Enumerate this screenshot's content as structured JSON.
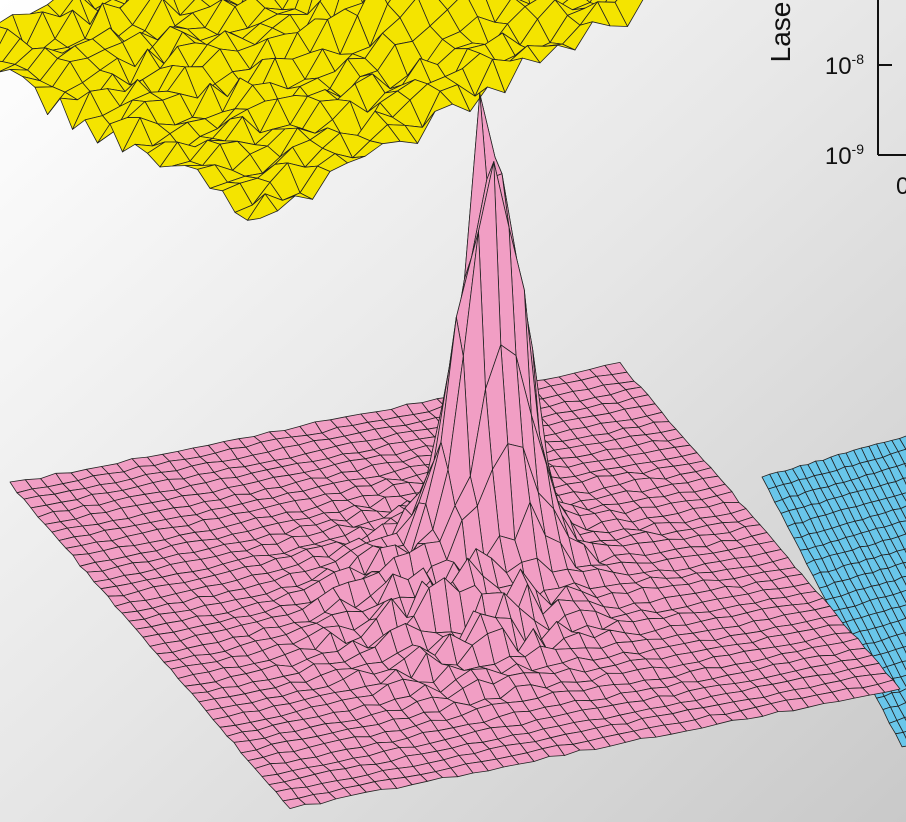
{
  "axis_label": "Lase",
  "y_ticks": [
    {
      "base": "10",
      "exponent": "-8"
    },
    {
      "base": "10",
      "exponent": "-9"
    }
  ],
  "x_tick": "0"
}
